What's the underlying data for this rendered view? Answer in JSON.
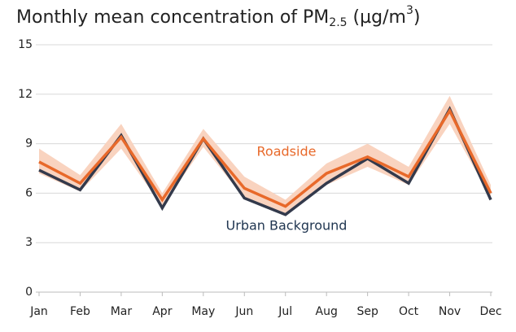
{
  "chart_data": {
    "type": "line",
    "title": [
      "Monthly mean concentration of PM",
      "2.5",
      " (µg/m",
      "3",
      ")"
    ],
    "categories": [
      "Jan",
      "Feb",
      "Mar",
      "Apr",
      "May",
      "Jun",
      "Jul",
      "Aug",
      "Sep",
      "Oct",
      "Nov",
      "Dec"
    ],
    "series": [
      {
        "name": "Urban Background",
        "color": "#333a4c",
        "values": [
          7.4,
          6.2,
          9.5,
          5.1,
          9.3,
          5.7,
          4.7,
          6.6,
          8.1,
          6.6,
          11.1,
          5.6
        ]
      },
      {
        "name": "Roadside",
        "color": "#e8692a",
        "band_color": "#f9d3bf",
        "values": [
          7.9,
          6.6,
          9.4,
          5.6,
          9.3,
          6.3,
          5.2,
          7.2,
          8.2,
          7.0,
          11.0,
          6.0
        ],
        "upper": [
          8.7,
          7.1,
          10.2,
          6.0,
          9.9,
          7.0,
          5.6,
          7.8,
          9.0,
          7.6,
          11.9,
          6.5
        ],
        "lower": [
          7.2,
          6.1,
          8.7,
          5.2,
          8.8,
          5.7,
          4.8,
          6.5,
          7.6,
          6.5,
          10.2,
          5.7
        ]
      }
    ],
    "ylim": [
      0,
      15
    ],
    "yticks": [
      0,
      3,
      6,
      9,
      12,
      15
    ],
    "grid": true
  }
}
